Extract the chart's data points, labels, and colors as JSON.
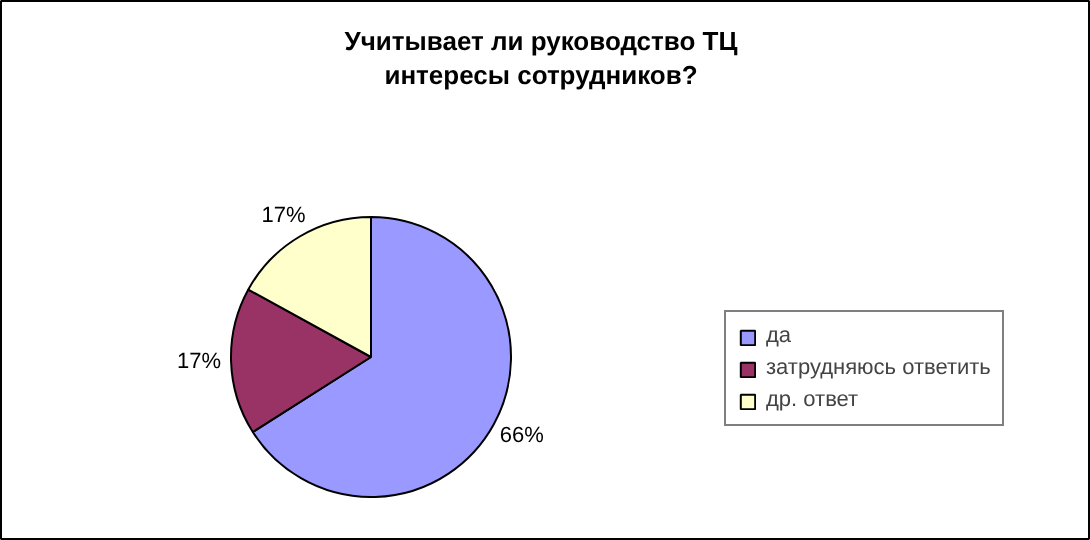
{
  "chart_data": {
    "type": "pie",
    "title": "Учитывает ли руководство ТЦ\nинтересы сотрудников?",
    "categories": [
      "да",
      "затрудняюсь ответить",
      "др. ответ"
    ],
    "values": [
      66,
      17,
      17
    ],
    "colors": [
      "#9999ff",
      "#993366",
      "#ffffcc"
    ],
    "value_labels": [
      "66%",
      "17%",
      "17%"
    ],
    "legend": "right"
  }
}
